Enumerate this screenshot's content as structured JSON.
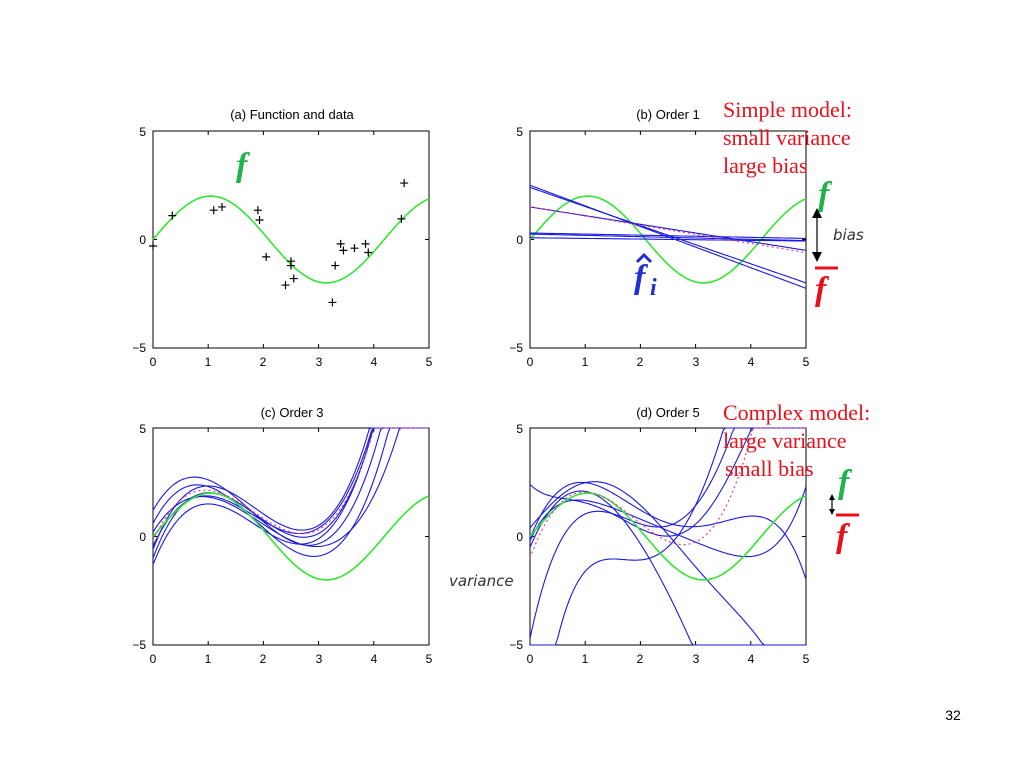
{
  "slide_number": "32",
  "colors": {
    "true_function": "#32e632",
    "fit": "#1a1ae0",
    "mean_fit": "#e83c8c",
    "annotation": "#e8101a",
    "symbol_green": "#22b24c",
    "symbol_blue": "#1f2fd4",
    "axis": "#000000"
  },
  "axis_ticks": {
    "x": [
      "0",
      "1",
      "2",
      "3",
      "4",
      "5"
    ],
    "y_top": "5",
    "y_mid": "0",
    "y_bottom": "−5"
  },
  "panel_titles": {
    "a": "(a) Function and data",
    "b": "(b) Order 1",
    "c": "(c) Order 3",
    "d": "(d) Order 5"
  },
  "annotations": {
    "simple_line1": "Simple model:",
    "simple_line2": "small variance",
    "simple_line3": "large bias",
    "complex_line1": "Complex model:",
    "complex_line2": "large variance",
    "complex_line3": "small bias",
    "bias_label": "bias",
    "variance_label": "variance"
  },
  "symbols": {
    "f": "f",
    "f_bar": "f",
    "f_hat_i_base": "f",
    "f_hat_i_sub": "i"
  },
  "data_points": [
    [
      0.0,
      -0.3
    ],
    [
      0.35,
      1.1
    ],
    [
      1.1,
      1.35
    ],
    [
      1.25,
      1.5
    ],
    [
      1.9,
      1.35
    ],
    [
      1.93,
      0.9
    ],
    [
      2.05,
      -0.8
    ],
    [
      2.4,
      -2.1
    ],
    [
      2.5,
      -1.0
    ],
    [
      2.5,
      -1.2
    ],
    [
      2.55,
      -1.8
    ],
    [
      3.25,
      -2.9
    ],
    [
      3.3,
      -1.2
    ],
    [
      3.4,
      -0.2
    ],
    [
      3.45,
      -0.5
    ],
    [
      3.65,
      -0.4
    ],
    [
      3.85,
      -0.2
    ],
    [
      3.9,
      -0.6
    ],
    [
      4.5,
      0.95
    ],
    [
      4.55,
      2.6
    ]
  ],
  "fits": {
    "order1": [
      [
        2.5,
        -0.95
      ],
      [
        2.4,
        -0.88
      ],
      [
        1.5,
        -0.4
      ],
      [
        0.3,
        -0.05
      ],
      [
        0.25,
        -0.06
      ],
      [
        0.08,
        -0.03
      ]
    ],
    "order3": [
      [
        -1.3,
        6.4,
        -4.4,
        0.8
      ],
      [
        -0.45,
        5.5,
        -3.9,
        0.72
      ],
      [
        0.6,
        4.9,
        -3.9,
        0.7
      ],
      [
        0.2,
        4.1,
        -3.0,
        0.52
      ],
      [
        -0.6,
        6.7,
        -4.6,
        0.83
      ],
      [
        1.2,
        4.5,
        -3.8,
        0.71
      ],
      [
        -1.0,
        6.8,
        -4.6,
        0.82
      ]
    ],
    "order3_mean": [
      -0.2,
      5.6,
      -4.0,
      0.73
    ],
    "order5": [
      [
        -0.5,
        6.0,
        -3.8,
        0.3,
        0.1,
        -0.02
      ],
      [
        2.4,
        -2.5,
        3.9,
        -3.1,
        0.94,
        -0.09
      ],
      [
        -4.7,
        12.0,
        -8.0,
        1.8,
        -0.05,
        -0.01
      ],
      [
        -13.0,
        24.0,
        -17.3,
        5.3,
        -0.63,
        0.025
      ],
      [
        -0.2,
        5.5,
        -5.5,
        2.3,
        -0.48,
        0.04
      ],
      [
        0.4,
        3.0,
        0.0,
        -1.3,
        0.42,
        -0.04
      ],
      [
        -0.1,
        6.5,
        -5.0,
        1.1,
        0.0,
        -0.015
      ]
    ],
    "order5_mean": [
      -1.0,
      7.0,
      -4.8,
      0.85,
      0.0,
      0.0
    ]
  }
}
